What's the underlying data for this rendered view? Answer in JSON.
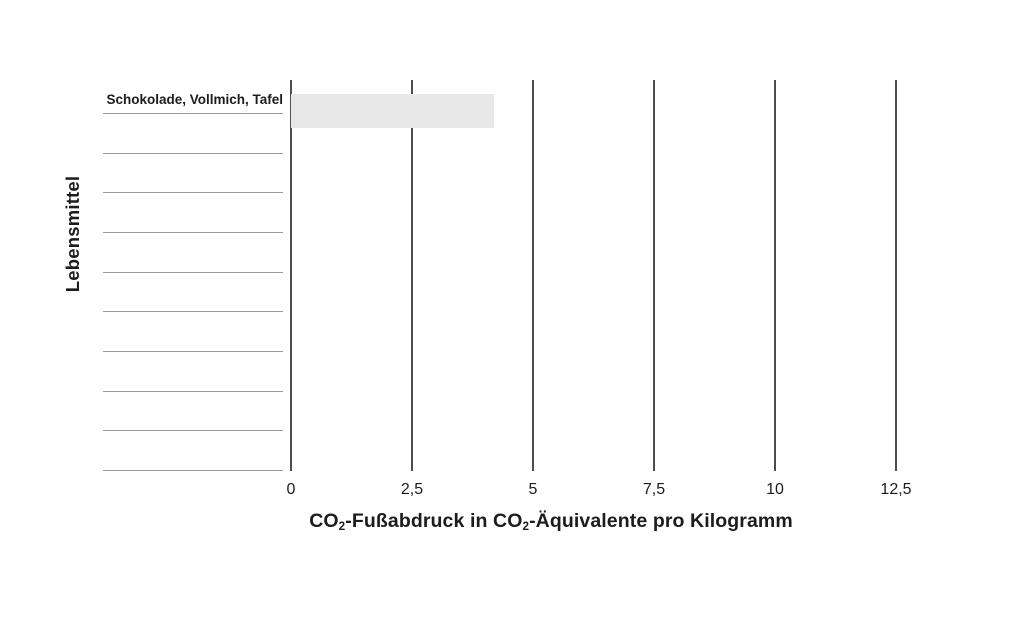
{
  "colors": {
    "bar_fill": "#e8e8e8",
    "gridline": "#4d4d4d",
    "category_line": "#9b9b9b",
    "text": "#1c1c1c",
    "background": "#ffffff"
  },
  "y_axis": {
    "title": "Lebensmittel"
  },
  "x_axis": {
    "ticks": [
      "0",
      "2,5",
      "5",
      "7,5",
      "10",
      "12,5"
    ],
    "title_parts": {
      "t1": "CO",
      "sub1": "2",
      "t2": "-Fußabdruck in CO",
      "sub2": "2",
      "t3": "-Äquivalente pro Kilogramm"
    }
  },
  "chart_data": {
    "type": "bar",
    "orientation": "horizontal",
    "title": "",
    "xlabel": "CO2-Fußabdruck in CO2-Äquivalente pro Kilogramm",
    "ylabel": "Lebensmittel",
    "xlim": [
      0,
      12.5
    ],
    "xticks": [
      0,
      2.5,
      5,
      7.5,
      10,
      12.5
    ],
    "grid": "vertical gridlines at each x tick, no horizontal axis line",
    "legend_position": "none",
    "num_category_rows": 10,
    "categories": [
      "Schokolade, Vollmich, Tafel",
      "",
      "",
      "",
      "",
      "",
      "",
      "",
      "",
      ""
    ],
    "values": [
      4.2,
      null,
      null,
      null,
      null,
      null,
      null,
      null,
      null,
      null
    ]
  }
}
